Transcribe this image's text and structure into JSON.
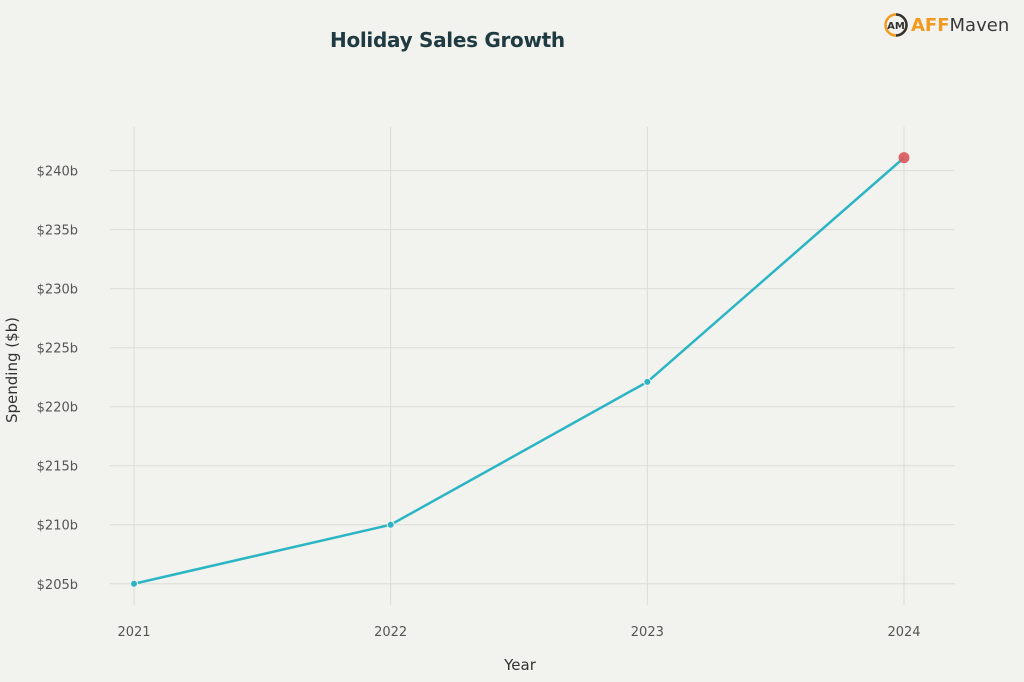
{
  "logo": {
    "text_a": "AFF",
    "text_b": "Maven",
    "icon": "am-monogram-circle"
  },
  "chart_data": {
    "type": "line",
    "title": "Holiday Sales Growth",
    "xlabel": "Year",
    "ylabel": "Spending ($b)",
    "categories": [
      "2021",
      "2022",
      "2023",
      "2024"
    ],
    "values": [
      205,
      210,
      222.1,
      241.1
    ],
    "yticks": [
      205,
      210,
      215,
      220,
      225,
      230,
      235,
      240
    ],
    "ytick_labels": [
      "$205b",
      "$210b",
      "$215b",
      "$220b",
      "$225b",
      "$230b",
      "$235b",
      "$240b"
    ],
    "ylim": [
      203.2,
      243.7
    ],
    "grid": true,
    "line_color": "#2bb5c4",
    "highlight_color": "#d9565a",
    "highlight_index": 3
  }
}
